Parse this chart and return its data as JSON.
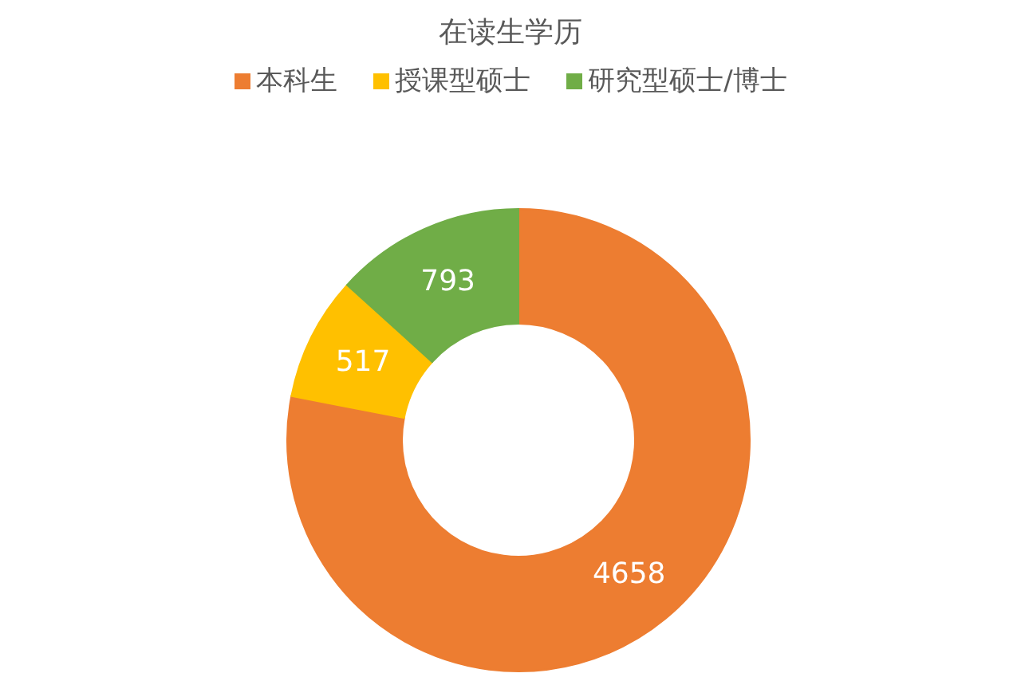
{
  "chart_data": {
    "type": "donut",
    "title": "在读生学历",
    "categories": [
      "本科生",
      "授课型硕士",
      "研究型硕士/博士"
    ],
    "values": [
      4658,
      517,
      793
    ],
    "colors": [
      "#ed7d31",
      "#ffc000",
      "#70ad47"
    ],
    "legend": "top",
    "data_labels": true
  }
}
